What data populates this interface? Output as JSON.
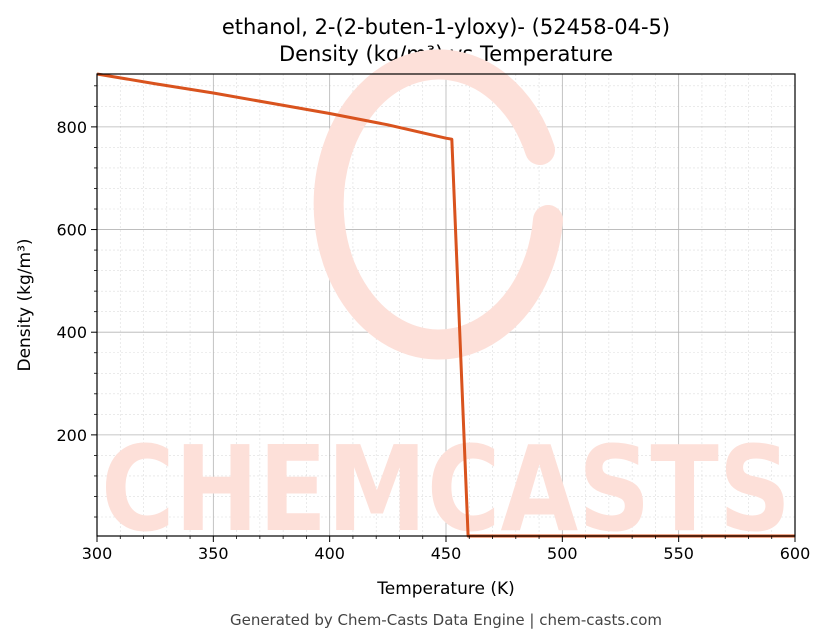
{
  "chart_data": {
    "type": "line",
    "title": "ethanol, 2-(2-buten-1-yloxy)- (52458-04-5)",
    "subtitle": "Density (kg/m³) vs Temperature",
    "xlabel": "Temperature (K)",
    "ylabel": "Density (kg/m³)",
    "xlim": [
      300,
      600
    ],
    "ylim": [
      3,
      903
    ],
    "xticks": [
      300,
      350,
      400,
      450,
      500,
      550,
      600
    ],
    "yticks": [
      200,
      400,
      600,
      800
    ],
    "grid": true,
    "line_color": "#d9531e",
    "series": [
      {
        "x": [
          300,
          325,
          350,
          375,
          400,
          425,
          450,
          452.5,
          459.5,
          480,
          520,
          560,
          600
        ],
        "y": [
          903,
          884,
          866,
          846,
          826,
          804,
          778,
          776,
          3,
          3,
          3,
          3,
          3
        ]
      }
    ]
  },
  "watermark": {
    "text": "CHEMCASTS",
    "color": "#fde0d9"
  },
  "footer": {
    "text": "Generated by Chem-Casts Data Engine | chem-casts.com"
  }
}
